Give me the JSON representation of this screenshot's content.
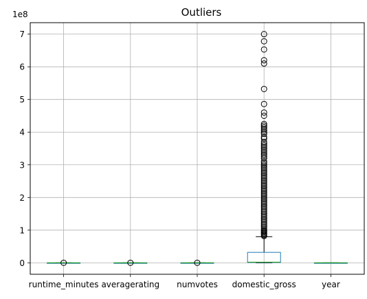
{
  "chart_data": {
    "type": "box",
    "title": "Outliers",
    "ylabel": "",
    "xlabel": "",
    "y_scale_label": "1e8",
    "ylim": [
      -0.35,
      7.35
    ],
    "y_ticks": [
      0,
      1,
      2,
      3,
      4,
      5,
      6,
      7
    ],
    "grid": true,
    "categories": [
      "runtime_minutes",
      "averagerating",
      "numvotes",
      "domestic_gross",
      "year"
    ],
    "boxes": [
      {
        "name": "runtime_minutes",
        "q1": 0.0,
        "median": 0.0,
        "q3": 0.0,
        "whisker_low": 0.0,
        "whisker_high": 0.0,
        "outliers": [
          0.0
        ]
      },
      {
        "name": "averagerating",
        "q1": 0.0,
        "median": 0.0,
        "q3": 0.0,
        "whisker_low": 0.0,
        "whisker_high": 0.0,
        "outliers": [
          0.0
        ]
      },
      {
        "name": "numvotes",
        "q1": 0.0,
        "median": 0.0,
        "q3": 0.0,
        "whisker_low": 0.0,
        "whisker_high": 0.0,
        "outliers": [
          0.0
        ]
      },
      {
        "name": "domestic_gross",
        "q1": 0.01,
        "median": 0.02,
        "q3": 0.32,
        "whisker_low": 0.0,
        "whisker_high": 0.8,
        "outliers": [
          7.0,
          6.78,
          6.53,
          6.2,
          6.1,
          5.32,
          4.86,
          4.6,
          4.5,
          4.25,
          4.2,
          4.15,
          4.1,
          4.05,
          4.0,
          3.95,
          3.85,
          3.8,
          3.7,
          3.65,
          3.6,
          3.55,
          3.5,
          3.45,
          3.4,
          3.35,
          3.3,
          3.25,
          3.2,
          3.1,
          3.05,
          3.0,
          2.95,
          2.9,
          2.85,
          2.8,
          2.75,
          2.7,
          2.65,
          2.6,
          2.55,
          2.5,
          2.45,
          2.4,
          2.35,
          2.3,
          2.25,
          2.2,
          2.15,
          2.1,
          2.05,
          2.0,
          1.95,
          1.9,
          1.85,
          1.8,
          1.75,
          1.7,
          1.65,
          1.6,
          1.55,
          1.5,
          1.45,
          1.4,
          1.35,
          1.3,
          1.25,
          1.2,
          1.15,
          1.1,
          1.05,
          1.0,
          0.97,
          0.94,
          0.91,
          0.88,
          0.85,
          0.82
        ]
      },
      {
        "name": "year",
        "q1": 0.0,
        "median": 0.0,
        "q3": 0.0,
        "whisker_low": 0.0,
        "whisker_high": 0.0,
        "outliers": []
      }
    ],
    "colors": {
      "box": "#1f77b4",
      "median": "#2ca02c",
      "grid": "#b0b0b0",
      "outlier": "#000000"
    }
  }
}
